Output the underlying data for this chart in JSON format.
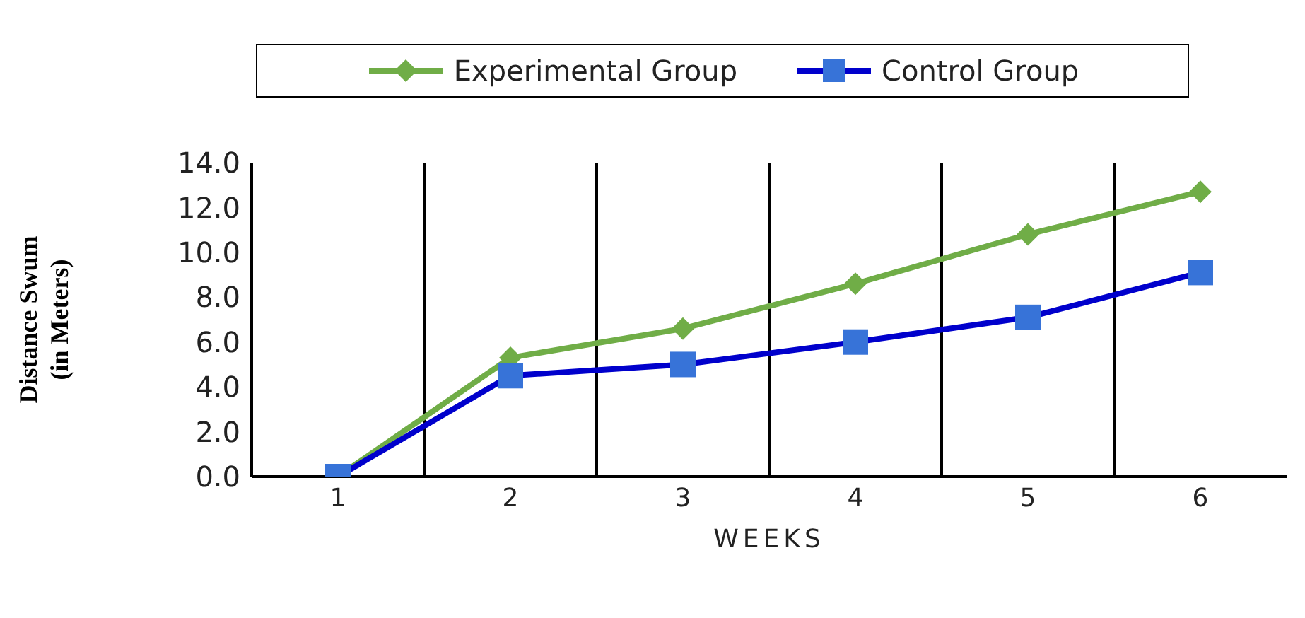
{
  "chart_data": {
    "type": "line",
    "xlabel": "WEEKS",
    "ylabel": "Distance Swum (in Meters)",
    "categories": [
      "1",
      "2",
      "3",
      "4",
      "5",
      "6"
    ],
    "series": [
      {
        "name": "Experimental Group",
        "color": "#70ad47",
        "marker": "diamond",
        "values": [
          0,
          5.3,
          6.6,
          8.6,
          10.8,
          12.7
        ]
      },
      {
        "name": "Control Group",
        "color": "#0000cc",
        "marker": "square",
        "values": [
          0,
          4.5,
          5.0,
          6.0,
          7.1,
          9.1
        ]
      }
    ],
    "ylim": [
      0,
      14
    ],
    "yticks": [
      {
        "value": 0,
        "label": "0.0"
      },
      {
        "value": 2,
        "label": "2.0"
      },
      {
        "value": 4,
        "label": "4.0"
      },
      {
        "value": 6,
        "label": "6.0"
      },
      {
        "value": 8,
        "label": "8.0"
      },
      {
        "value": 10,
        "label": "10.0"
      },
      {
        "value": 12,
        "label": "12.0"
      },
      {
        "value": 14,
        "label": "14.0"
      }
    ],
    "grid": "x",
    "legend": "top",
    "line_style": "solid"
  }
}
